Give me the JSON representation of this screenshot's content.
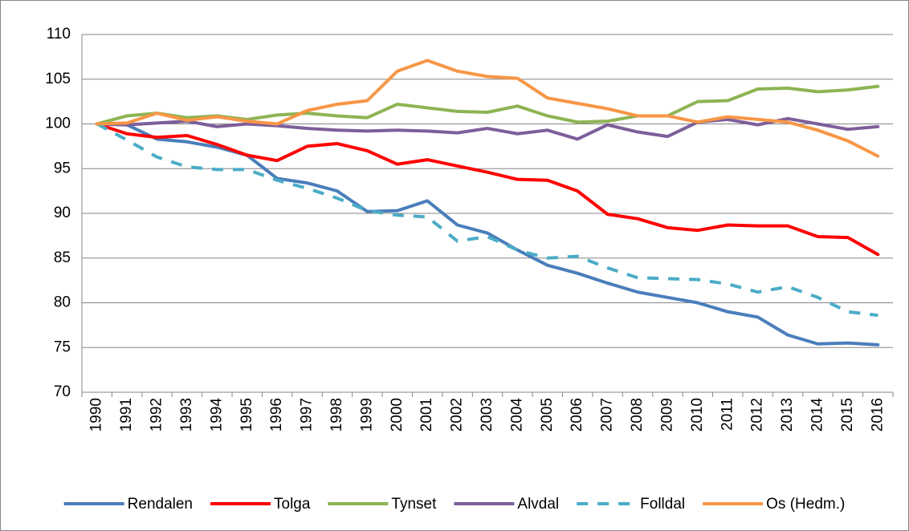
{
  "chart_data": {
    "type": "line",
    "categories": [
      "1990",
      "1991",
      "1992",
      "1993",
      "1994",
      "1995",
      "1996",
      "1997",
      "1998",
      "1999",
      "2000",
      "2001",
      "2002",
      "2003",
      "2004",
      "2005",
      "2006",
      "2007",
      "2008",
      "2009",
      "2010",
      "2011",
      "2012",
      "2013",
      "2014",
      "2015",
      "2016"
    ],
    "series": [
      {
        "name": "Rendalen",
        "color": "#4a7ebb",
        "values": [
          100,
          99.9,
          98.3,
          98.0,
          97.4,
          96.5,
          93.9,
          93.4,
          92.5,
          90.2,
          90.3,
          91.4,
          88.7,
          87.8,
          85.9,
          84.2,
          83.3,
          82.2,
          81.2,
          80.6,
          80.0,
          79.0,
          78.4,
          76.4,
          75.4,
          75.5,
          75.3
        ]
      },
      {
        "name": "Tolga",
        "color": "#ff0000",
        "values": [
          100,
          98.9,
          98.5,
          98.7,
          97.7,
          96.5,
          95.9,
          97.5,
          97.8,
          97.0,
          95.5,
          96.0,
          95.3,
          94.6,
          93.8,
          93.7,
          92.5,
          89.9,
          89.4,
          88.4,
          88.1,
          88.7,
          88.6,
          88.6,
          87.4,
          87.3,
          85.4
        ]
      },
      {
        "name": "Tynset",
        "color": "#8db453",
        "values": [
          100,
          100.9,
          101.2,
          100.7,
          100.9,
          100.5,
          101.0,
          101.2,
          100.9,
          100.7,
          102.2,
          101.8,
          101.4,
          101.3,
          102.0,
          100.9,
          100.2,
          100.3,
          100.9,
          100.9,
          102.5,
          102.6,
          103.9,
          104.0,
          103.6,
          103.8,
          104.2
        ]
      },
      {
        "name": "Alvdal",
        "color": "#7d5f9a",
        "values": [
          100,
          99.9,
          100.1,
          100.3,
          99.7,
          100.0,
          99.8,
          99.5,
          99.3,
          99.2,
          99.3,
          99.2,
          99.0,
          99.5,
          98.9,
          99.3,
          98.3,
          99.9,
          99.1,
          98.6,
          100.2,
          100.5,
          99.9,
          100.6,
          100.0,
          99.4,
          99.7
        ]
      },
      {
        "name": "Folldal",
        "color": "#4bacc6",
        "dashed": true,
        "values": [
          100,
          98.2,
          96.3,
          95.2,
          94.9,
          94.9,
          93.7,
          92.8,
          91.7,
          90.3,
          89.8,
          89.6,
          86.9,
          87.4,
          85.9,
          85.0,
          85.2,
          83.9,
          82.8,
          82.7,
          82.6,
          82.1,
          81.2,
          81.8,
          80.6,
          79.0,
          78.6
        ]
      },
      {
        "name": "Os (Hedm.)",
        "color": "#f79646",
        "values": [
          100,
          100.1,
          101.2,
          100.4,
          100.8,
          100.3,
          100.0,
          101.5,
          102.2,
          102.6,
          105.9,
          107.1,
          105.9,
          105.3,
          105.1,
          102.9,
          102.3,
          101.7,
          100.9,
          100.9,
          100.2,
          100.8,
          100.5,
          100.2,
          99.3,
          98.1,
          96.4
        ]
      }
    ],
    "ylim": [
      70,
      110
    ],
    "yticks": [
      70,
      75,
      80,
      85,
      90,
      95,
      100,
      105,
      110
    ],
    "grid": true,
    "legend": "bottom"
  }
}
